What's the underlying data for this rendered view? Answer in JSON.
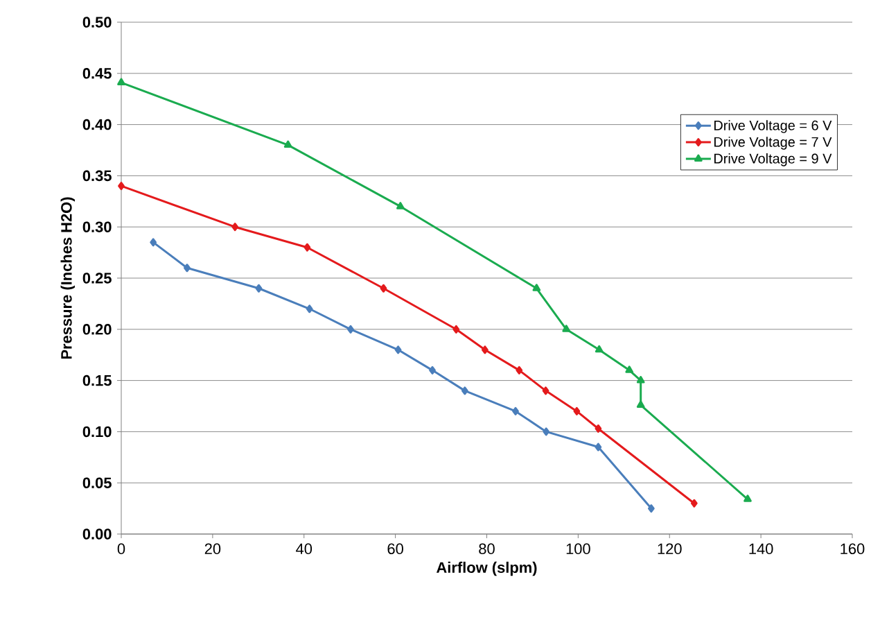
{
  "chart_data": {
    "type": "line",
    "xlabel": "Airflow (slpm)",
    "ylabel": "Pressure  (Inches H2O)",
    "xlim": [
      0,
      160
    ],
    "xticks": [
      0,
      20,
      40,
      60,
      80,
      100,
      120,
      140,
      160
    ],
    "ylim": [
      0,
      0.5
    ],
    "yticks": [
      {
        "value": 0,
        "label": "0.00"
      },
      {
        "value": 0.05,
        "label": "0.05"
      },
      {
        "value": 0.1,
        "label": "0.10"
      },
      {
        "value": 0.15,
        "label": "0.15"
      },
      {
        "value": 0.2,
        "label": "0.20"
      },
      {
        "value": 0.25,
        "label": "0.25"
      },
      {
        "value": 0.3,
        "label": "0.30"
      },
      {
        "value": 0.35,
        "label": "0.35"
      },
      {
        "value": 0.4,
        "label": "0.40"
      },
      {
        "value": 0.45,
        "label": "0.45"
      },
      {
        "value": 0.5,
        "label": "0.50"
      }
    ],
    "grid": "y",
    "legend": "top right",
    "line_style": "solid",
    "series": [
      {
        "name": "Drive Voltage = 6 V",
        "color": "#4a7ebb",
        "marker": "diamond",
        "x": [
          7.0,
          14.4,
          30.1,
          41.2,
          50.2,
          60.6,
          68.1,
          75.2,
          86.3,
          93.0,
          104.4,
          116.0
        ],
        "values": [
          0.285,
          0.26,
          0.24,
          0.22,
          0.2,
          0.18,
          0.16,
          0.14,
          0.12,
          0.1,
          0.085,
          0.025
        ]
      },
      {
        "name": "Drive Voltage = 7 V",
        "color": "#e41a1c",
        "marker": "diamond",
        "x": [
          0,
          24.9,
          40.7,
          57.4,
          73.3,
          79.6,
          87.1,
          92.9,
          99.7,
          104.4,
          125.4
        ],
        "values": [
          0.34,
          0.3,
          0.28,
          0.24,
          0.2,
          0.18,
          0.16,
          0.14,
          0.12,
          0.103,
          0.03
        ]
      },
      {
        "name": "Drive Voltage = 9 V",
        "color": "#1aab4f",
        "marker": "triangle",
        "x": [
          0,
          36.5,
          61.1,
          90.9,
          97.4,
          104.6,
          111.2,
          113.7,
          113.7,
          137.1
        ],
        "values": [
          0.441,
          0.38,
          0.32,
          0.24,
          0.2,
          0.18,
          0.16,
          0.15,
          0.126,
          0.034
        ]
      }
    ]
  }
}
